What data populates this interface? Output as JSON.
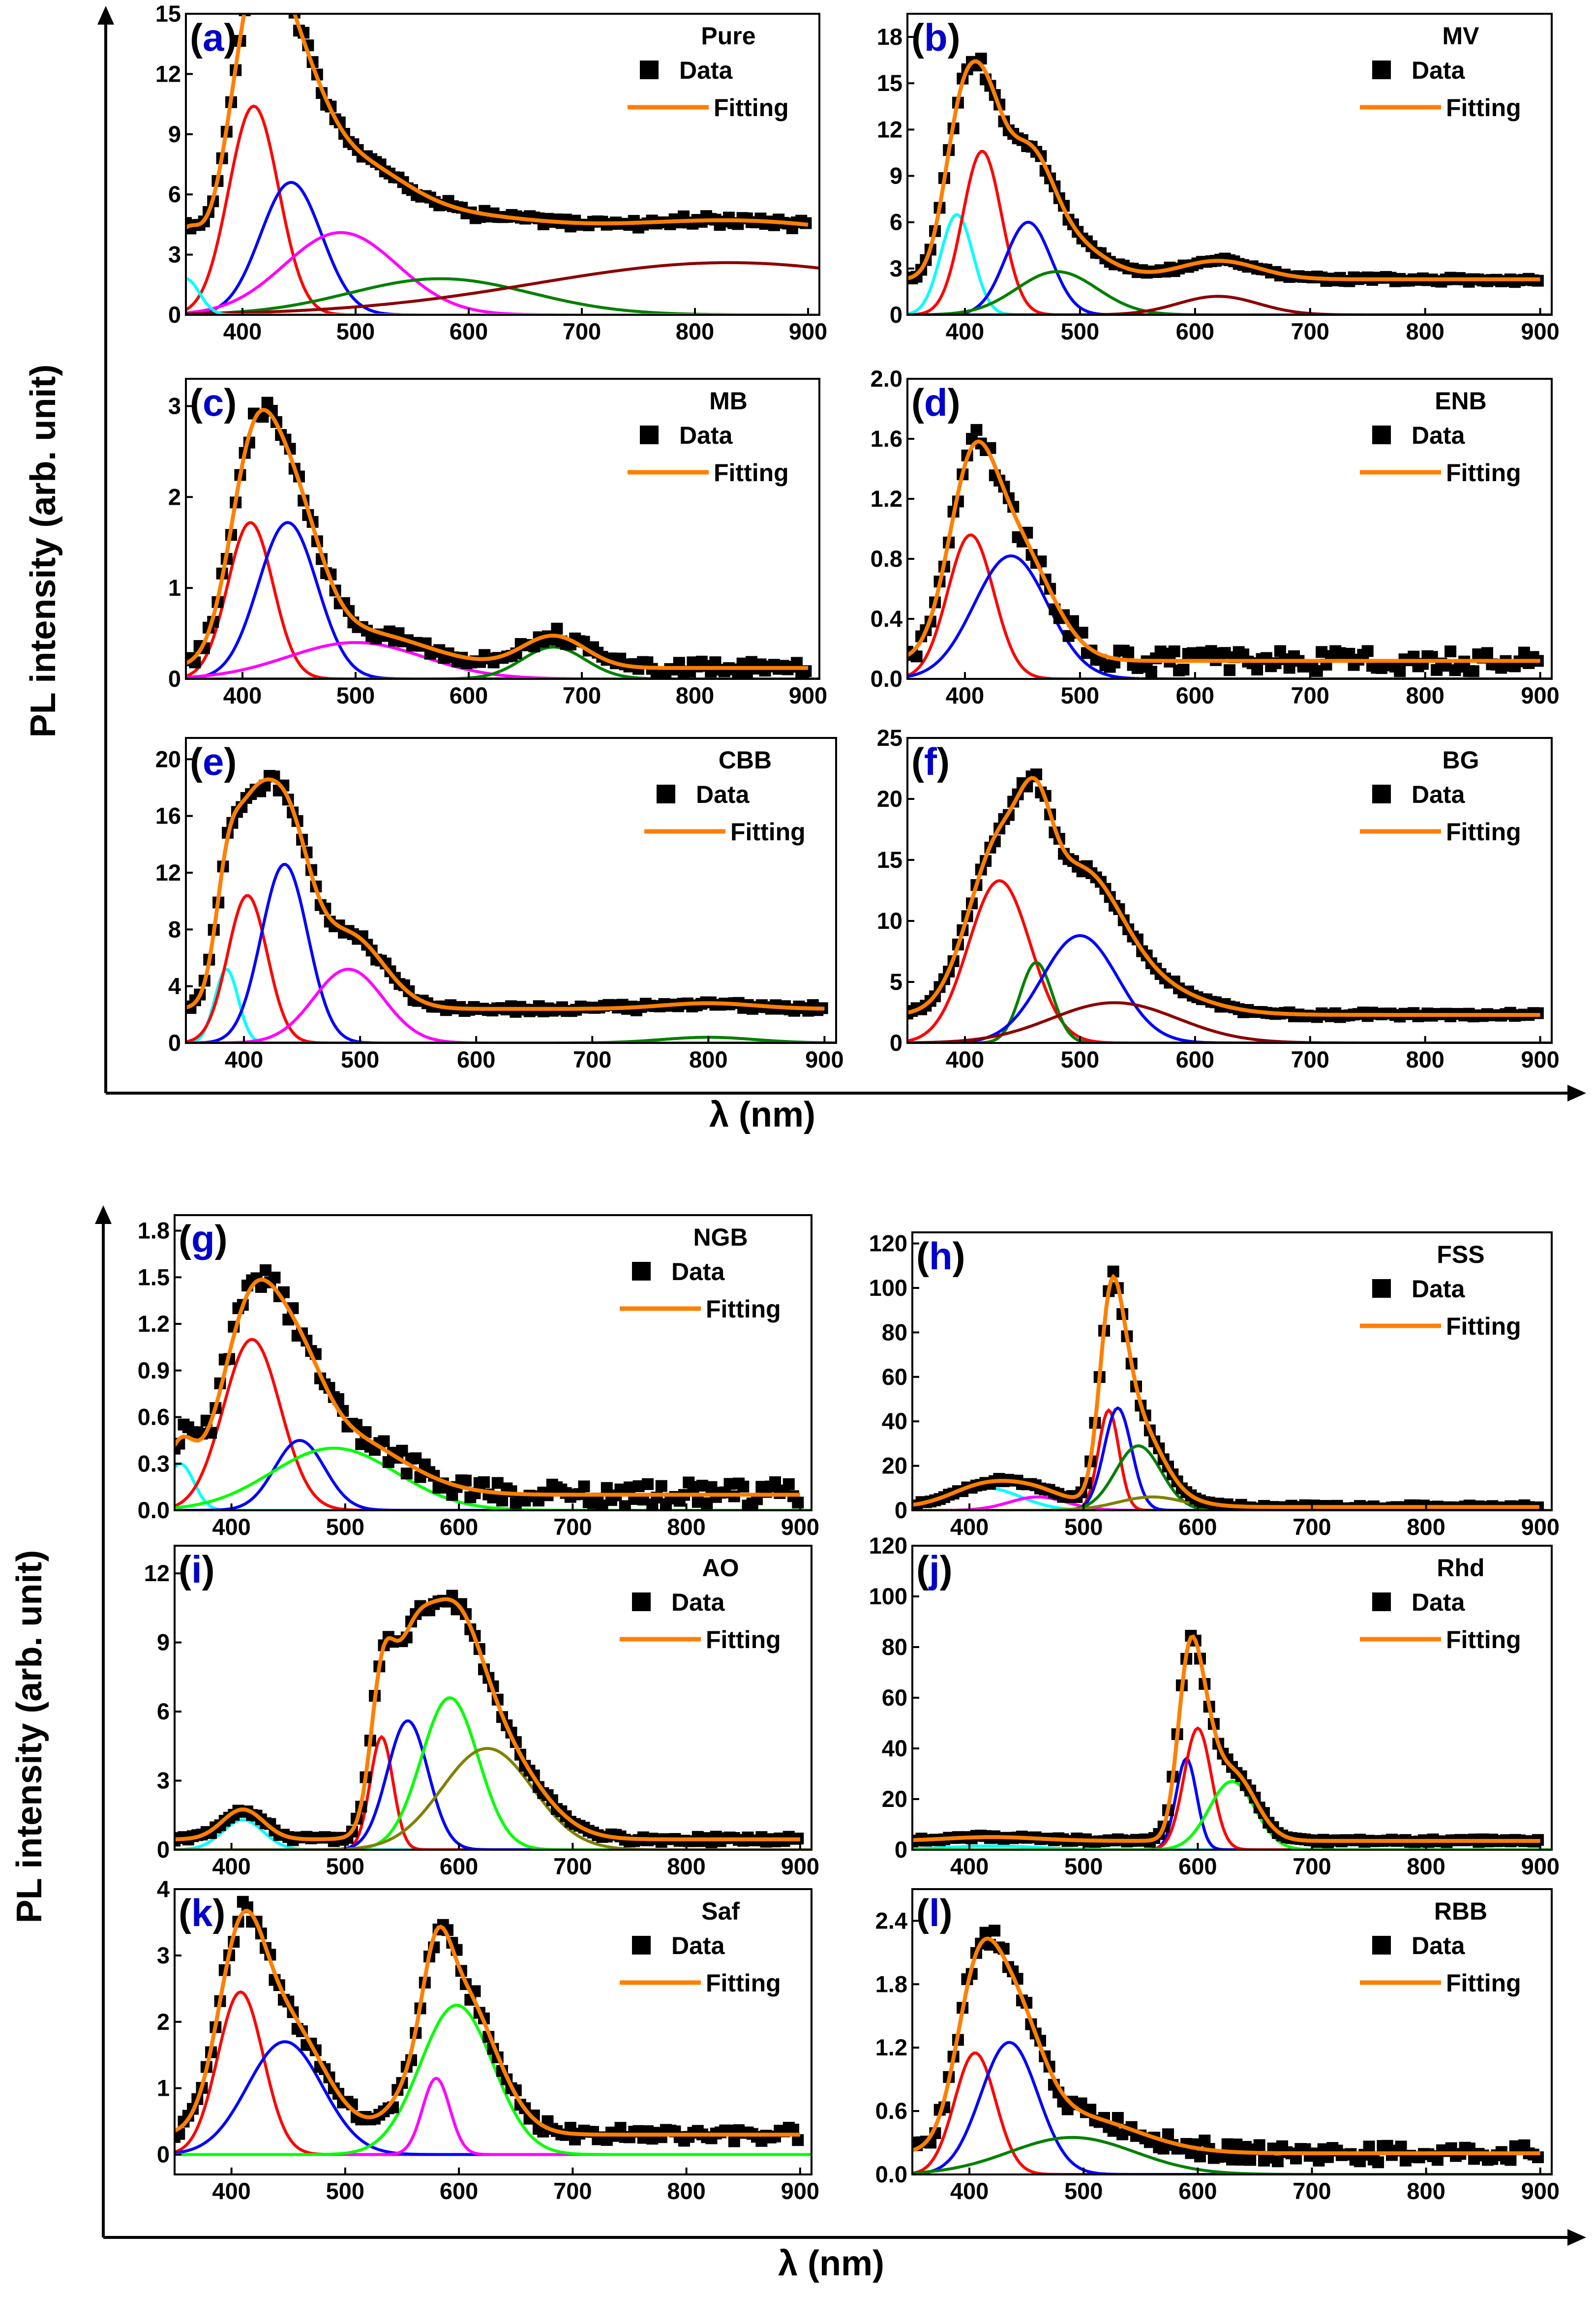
{
  "legend": {
    "data_label": "Data",
    "fit_label": "Fitting"
  },
  "colors": {
    "data": "#000000",
    "fit": "#ff7f00",
    "red": "#ff0000",
    "blue": "#0000ff",
    "magenta": "#ff00ff",
    "green": "#008000",
    "cyan": "#00ffff",
    "darkred": "#8b0000",
    "lime": "#00ff00",
    "olive": "#808000"
  },
  "axes": {
    "top": {
      "xlabel": "λ (nm)",
      "ylabel": "PL intensity (arb. unit)"
    },
    "bottom": {
      "xlabel": "λ (nm)",
      "ylabel": "PL intensity (arb. unit)"
    }
  },
  "chart_data": [
    {
      "id": "a",
      "type": "line",
      "label": "(a)",
      "title": "Pure",
      "xlim": [
        350,
        910
      ],
      "xticks": [
        400,
        500,
        600,
        700,
        800,
        900
      ],
      "ylim": [
        0,
        15
      ],
      "yticks": [
        0,
        3,
        6,
        9,
        12,
        15
      ],
      "baseline": 2.1,
      "noise": 0.15,
      "peaks": [
        {
          "color": "#ff0000",
          "center": 410,
          "height": 10.4,
          "width": 22
        },
        {
          "color": "#0000ff",
          "center": 443,
          "height": 6.6,
          "width": 27
        },
        {
          "color": "#ff00ff",
          "center": 487,
          "height": 4.1,
          "width": 50
        },
        {
          "color": "#008000",
          "center": 575,
          "height": 1.8,
          "width": 80
        },
        {
          "color": "#8b0000",
          "center": 830,
          "height": 2.6,
          "width": 170
        },
        {
          "color": "#00ffff",
          "center": 350,
          "height": 1.8,
          "width": 12
        }
      ]
    },
    {
      "id": "b",
      "type": "line",
      "label": "(b)",
      "title": "MV",
      "xlim": [
        350,
        910
      ],
      "xticks": [
        400,
        500,
        600,
        700,
        800,
        900
      ],
      "ylim": [
        0,
        19.5
      ],
      "yticks": [
        0,
        3,
        6,
        9,
        12,
        15,
        18
      ],
      "baseline": 2.3,
      "noise": 0.15,
      "peaks": [
        {
          "color": "#00ffff",
          "center": 393,
          "height": 6.5,
          "width": 14
        },
        {
          "color": "#ff0000",
          "center": 415,
          "height": 10.6,
          "width": 17
        },
        {
          "color": "#0000ff",
          "center": 455,
          "height": 6.0,
          "width": 20
        },
        {
          "color": "#008000",
          "center": 480,
          "height": 2.8,
          "width": 35
        },
        {
          "color": "#8b0000",
          "center": 620,
          "height": 1.2,
          "width": 35
        }
      ]
    },
    {
      "id": "c",
      "type": "line",
      "label": "(c)",
      "title": "MB",
      "xlim": [
        350,
        910
      ],
      "xticks": [
        400,
        500,
        600,
        700,
        800,
        900
      ],
      "ylim": [
        0,
        3.3
      ],
      "yticks": [
        0,
        1,
        2,
        3
      ],
      "baseline": 0.12,
      "noise": 0.07,
      "peaks": [
        {
          "color": "#ff0000",
          "center": 407,
          "height": 1.72,
          "width": 20
        },
        {
          "color": "#0000ff",
          "center": 440,
          "height": 1.72,
          "width": 26
        },
        {
          "color": "#ff00ff",
          "center": 500,
          "height": 0.4,
          "width": 60
        },
        {
          "color": "#008000",
          "center": 675,
          "height": 0.35,
          "width": 28
        }
      ]
    },
    {
      "id": "d",
      "type": "line",
      "label": "(d)",
      "title": "ENB",
      "xlim": [
        350,
        910
      ],
      "xticks": [
        400,
        500,
        600,
        700,
        800,
        900
      ],
      "ylim": [
        0,
        2.0
      ],
      "yticks": [
        0.0,
        0.4,
        0.8,
        1.2,
        1.6,
        2.0
      ],
      "baseline": 0.12,
      "noise": 0.07,
      "peaks": [
        {
          "color": "#ff0000",
          "center": 405,
          "height": 0.96,
          "width": 20
        },
        {
          "color": "#0000ff",
          "center": 440,
          "height": 0.82,
          "width": 32
        }
      ]
    },
    {
      "id": "e",
      "type": "line",
      "label": "(e)",
      "title": "CBB",
      "xlim": [
        350,
        910
      ],
      "xticks": [
        400,
        500,
        600,
        700,
        800,
        900
      ],
      "ylim": [
        0,
        21.5
      ],
      "yticks": [
        0,
        4,
        8,
        12,
        16,
        20
      ],
      "baseline": 2.4,
      "noise": 0.2,
      "peaks": [
        {
          "color": "#00ffff",
          "center": 385,
          "height": 5.2,
          "width": 10
        },
        {
          "color": "#ff0000",
          "center": 403,
          "height": 10.4,
          "width": 17
        },
        {
          "color": "#0000ff",
          "center": 435,
          "height": 12.6,
          "width": 20
        },
        {
          "color": "#ff00ff",
          "center": 490,
          "height": 5.2,
          "width": 30
        },
        {
          "color": "#008000",
          "center": 800,
          "height": 0.4,
          "width": 40
        }
      ]
    },
    {
      "id": "f",
      "type": "line",
      "label": "(f)",
      "title": "BG",
      "xlim": [
        350,
        910
      ],
      "xticks": [
        400,
        500,
        600,
        700,
        800,
        900
      ],
      "ylim": [
        0,
        25
      ],
      "yticks": [
        0,
        5,
        10,
        15,
        20,
        25
      ],
      "baseline": 2.3,
      "noise": 0.15,
      "peaks": [
        {
          "color": "#ff0000",
          "center": 430,
          "height": 13.3,
          "width": 27
        },
        {
          "color": "#008000",
          "center": 462,
          "height": 6.6,
          "width": 14
        },
        {
          "color": "#0000ff",
          "center": 500,
          "height": 8.8,
          "width": 33
        },
        {
          "color": "#8b0000",
          "center": 530,
          "height": 3.3,
          "width": 55
        }
      ]
    },
    {
      "id": "g",
      "type": "line",
      "label": "(g)",
      "title": "NGB",
      "xlim": [
        350,
        910
      ],
      "xticks": [
        400,
        500,
        600,
        700,
        800,
        900
      ],
      "ylim": [
        0,
        1.9
      ],
      "yticks": [
        0.0,
        0.3,
        0.6,
        0.9,
        1.2,
        1.5,
        1.8
      ],
      "baseline": 0.1,
      "noise": 0.08,
      "peaks": [
        {
          "color": "#00ffff",
          "center": 355,
          "height": 0.3,
          "width": 12
        },
        {
          "color": "#ff0000",
          "center": 418,
          "height": 1.1,
          "width": 25
        },
        {
          "color": "#0000ff",
          "center": 460,
          "height": 0.45,
          "width": 22
        },
        {
          "color": "#00ff00",
          "center": 490,
          "height": 0.4,
          "width": 55
        }
      ]
    },
    {
      "id": "h",
      "type": "line",
      "label": "(h)",
      "title": "FSS",
      "xlim": [
        350,
        910
      ],
      "xticks": [
        400,
        500,
        600,
        700,
        800,
        900
      ],
      "ylim": [
        0,
        125
      ],
      "yticks": [
        0,
        20,
        40,
        60,
        80,
        100,
        120
      ],
      "baseline": 1.5,
      "noise": 0.8,
      "peaks": [
        {
          "color": "#00ffff",
          "center": 415,
          "height": 10,
          "width": 30
        },
        {
          "color": "#ff00ff",
          "center": 460,
          "height": 6,
          "width": 25
        },
        {
          "color": "#ff0000",
          "center": 522,
          "height": 45,
          "width": 9
        },
        {
          "color": "#0000ff",
          "center": 530,
          "height": 46,
          "width": 12
        },
        {
          "color": "#008000",
          "center": 548,
          "height": 29,
          "width": 20
        },
        {
          "color": "#808000",
          "center": 560,
          "height": 6,
          "width": 30
        }
      ]
    },
    {
      "id": "i",
      "type": "line",
      "label": "(i)",
      "title": "AO",
      "xlim": [
        350,
        910
      ],
      "xticks": [
        400,
        500,
        600,
        700,
        800,
        900
      ],
      "ylim": [
        0,
        13.2
      ],
      "yticks": [
        0,
        3,
        6,
        9,
        12
      ],
      "baseline": 0.45,
      "noise": 0.12,
      "peaks": [
        {
          "color": "#00ffff",
          "center": 410,
          "height": 1.3,
          "width": 18
        },
        {
          "color": "#ff0000",
          "center": 532,
          "height": 4.9,
          "width": 10
        },
        {
          "color": "#0000ff",
          "center": 555,
          "height": 5.6,
          "width": 18
        },
        {
          "color": "#00ff00",
          "center": 592,
          "height": 6.6,
          "width": 25
        },
        {
          "color": "#808000",
          "center": 625,
          "height": 4.4,
          "width": 40
        }
      ]
    },
    {
      "id": "j",
      "type": "line",
      "label": "(j)",
      "title": "Rhd",
      "xlim": [
        350,
        910
      ],
      "xticks": [
        400,
        500,
        600,
        700,
        800,
        900
      ],
      "ylim": [
        0,
        120
      ],
      "yticks": [
        0,
        20,
        40,
        60,
        80,
        100,
        120
      ],
      "baseline": 3.5,
      "noise": 0.6,
      "peaks": [
        {
          "color": "#00ffff",
          "center": 420,
          "height": 1.5,
          "width": 40
        },
        {
          "color": "#0000ff",
          "center": 590,
          "height": 36,
          "width": 9
        },
        {
          "color": "#ff0000",
          "center": 600,
          "height": 48,
          "width": 12
        },
        {
          "color": "#00ff00",
          "center": 630,
          "height": 27,
          "width": 20
        }
      ]
    },
    {
      "id": "k",
      "type": "line",
      "label": "(k)",
      "title": "Saf",
      "xlim": [
        350,
        910
      ],
      "xticks": [
        400,
        500,
        600,
        700,
        800,
        900
      ],
      "ylim": [
        -0.3,
        4.0
      ],
      "yticks": [
        0,
        1,
        2,
        3,
        4
      ],
      "baseline": 0.3,
      "noise": 0.1,
      "peaks": [
        {
          "color": "#ff0000",
          "center": 408,
          "height": 2.45,
          "width": 20
        },
        {
          "color": "#0000ff",
          "center": 447,
          "height": 1.7,
          "width": 33
        },
        {
          "color": "#ff00ff",
          "center": 580,
          "height": 1.15,
          "width": 12
        },
        {
          "color": "#00ff00",
          "center": 598,
          "height": 2.25,
          "width": 32
        }
      ]
    },
    {
      "id": "l",
      "type": "line",
      "label": "(l)",
      "title": "RBB",
      "xlim": [
        350,
        910
      ],
      "xticks": [
        400,
        500,
        600,
        700,
        800,
        900
      ],
      "ylim": [
        0,
        2.7
      ],
      "yticks": [
        0.0,
        0.6,
        1.2,
        1.8,
        2.4
      ],
      "baseline": 0.2,
      "noise": 0.08,
      "peaks": [
        {
          "color": "#ff0000",
          "center": 405,
          "height": 1.15,
          "width": 18
        },
        {
          "color": "#0000ff",
          "center": 435,
          "height": 1.25,
          "width": 25
        },
        {
          "color": "#008000",
          "center": 490,
          "height": 0.35,
          "width": 55
        }
      ]
    }
  ]
}
